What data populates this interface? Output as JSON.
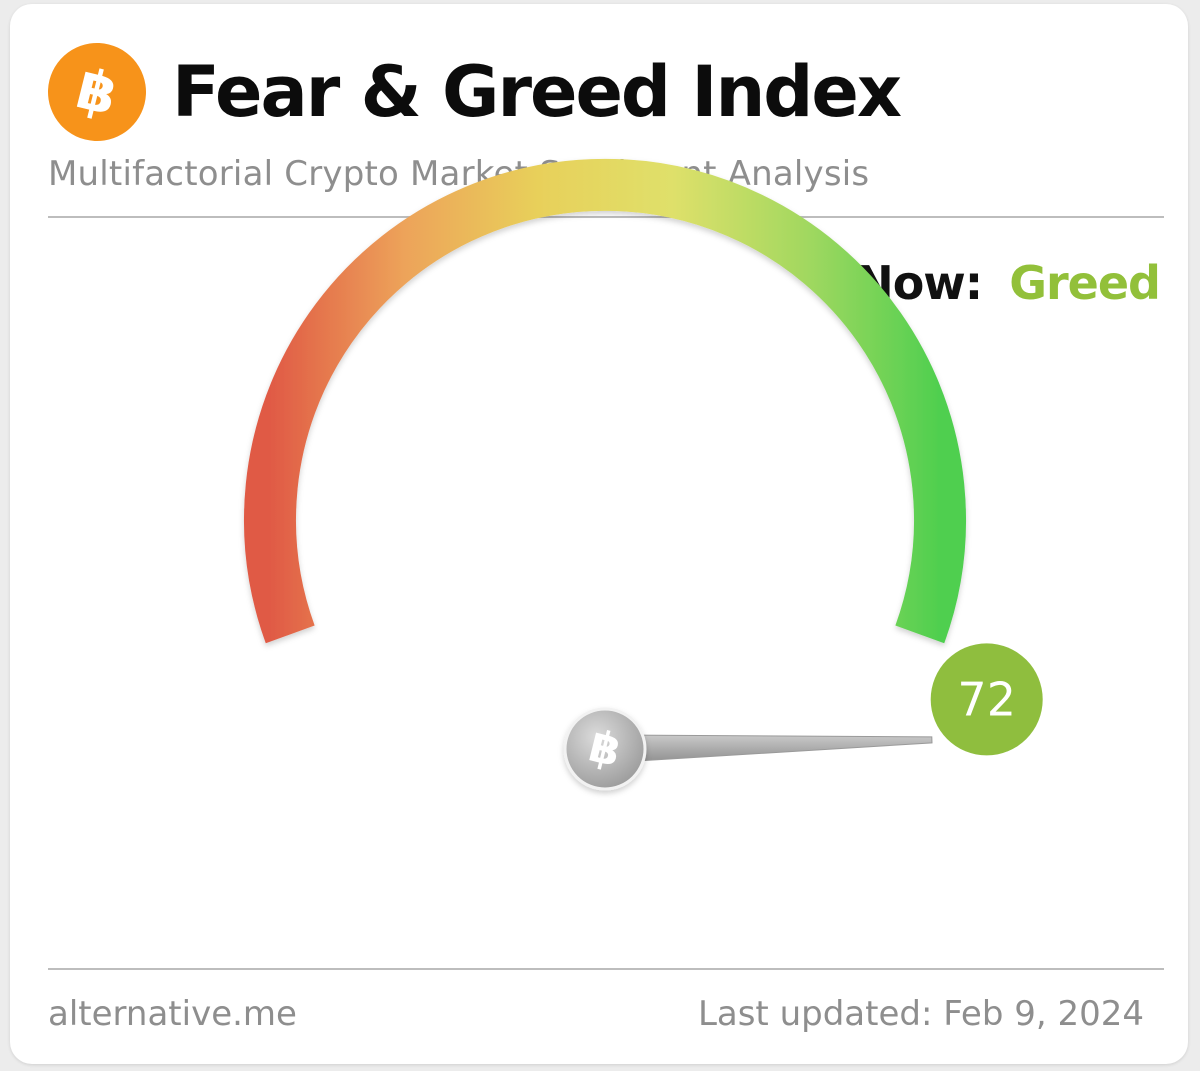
{
  "header": {
    "title": "Fear & Greed Index",
    "subtitle": "Multifactorial Crypto Market Sentiment Analysis",
    "logo_glyph": "฿",
    "logo_icon": "bitcoin-icon"
  },
  "status": {
    "now_label": "Now:",
    "now_value": "Greed",
    "now_color": "#92c03a"
  },
  "gauge": {
    "value": 72,
    "value_text": "72",
    "min": 0,
    "max": 100,
    "badge_color": "#8fbe3e",
    "hub_glyph": "฿",
    "gradient_colors": [
      "#e05a45",
      "#eda35a",
      "#e8d05a",
      "#dfe06a",
      "#a2d860",
      "#4fcf4f"
    ]
  },
  "footer": {
    "source": "alternative.me",
    "updated": "Last updated: Feb 9, 2024"
  }
}
